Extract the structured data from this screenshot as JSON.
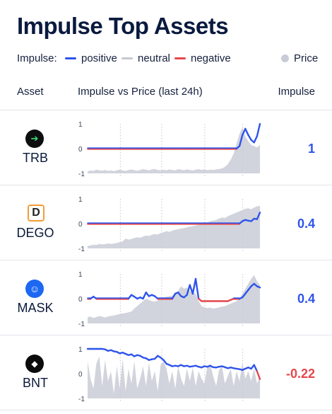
{
  "title": "Impulse Top Assets",
  "legend": {
    "prefix": "Impulse:",
    "positive": "positive",
    "neutral": "neutral",
    "negative": "negative",
    "price": "Price"
  },
  "colors": {
    "positive": "#2f54eb",
    "neutral": "#c5c8d0",
    "negative": "#e5484d",
    "price": "#c9ccd6"
  },
  "headers": {
    "asset": "Asset",
    "chart": "Impulse vs Price (last 24h)",
    "impulse": "Impulse"
  },
  "chart_data": [
    {
      "type": "line",
      "asset": "TRB",
      "icon": "trb-logo-icon",
      "impulse_label": "1",
      "impulse_color": "positive",
      "yticks": [
        "1",
        "0",
        "-1"
      ],
      "ylim": [
        -1,
        1
      ],
      "x_count": 60,
      "series": [
        {
          "kind": "impulse",
          "values": [
            0,
            0,
            0,
            0,
            0,
            0,
            0,
            0,
            0,
            0,
            0,
            0,
            0,
            0,
            0,
            0,
            0,
            0,
            0,
            0,
            0,
            0,
            0,
            0,
            0,
            0,
            0,
            0,
            0,
            0,
            0,
            0,
            0,
            0,
            0,
            0,
            0,
            0,
            0,
            0,
            0,
            0,
            0,
            0,
            0,
            0,
            0,
            0,
            0,
            0,
            0,
            0,
            0.1,
            0.55,
            0.8,
            0.55,
            0.35,
            0.25,
            0.5,
            1.0
          ]
        },
        {
          "kind": "price",
          "values": [
            -0.92,
            -0.88,
            -0.9,
            -0.85,
            -0.87,
            -0.89,
            -0.86,
            -0.9,
            -0.88,
            -0.91,
            -0.87,
            -0.85,
            -0.88,
            -0.9,
            -0.86,
            -0.84,
            -0.87,
            -0.89,
            -0.86,
            -0.83,
            -0.85,
            -0.88,
            -0.84,
            -0.82,
            -0.86,
            -0.88,
            -0.85,
            -0.87,
            -0.84,
            -0.86,
            -0.88,
            -0.83,
            -0.85,
            -0.87,
            -0.84,
            -0.86,
            -0.88,
            -0.85,
            -0.83,
            -0.86,
            -0.84,
            -0.87,
            -0.85,
            -0.86,
            -0.84,
            -0.82,
            -0.8,
            -0.74,
            -0.62,
            -0.45,
            -0.2,
            0.2,
            0.6,
            0.85,
            0.5,
            0.3,
            0.15,
            0.1,
            0.05,
            0.15
          ]
        }
      ]
    },
    {
      "type": "line",
      "asset": "DEGO",
      "icon": "dego-logo-icon",
      "impulse_label": "0.4",
      "impulse_color": "positive",
      "yticks": [
        "1",
        "0",
        "-1"
      ],
      "ylim": [
        -1,
        1
      ],
      "x_count": 60,
      "series": [
        {
          "kind": "impulse",
          "values": [
            0,
            0,
            0,
            0,
            0,
            0,
            0,
            0,
            0,
            0,
            0,
            0,
            0,
            0,
            0,
            0,
            0,
            0,
            0,
            0,
            0,
            0,
            0,
            0,
            0,
            0,
            0,
            0,
            0,
            0,
            0,
            0,
            0,
            0,
            0,
            0,
            0,
            0,
            0,
            0,
            0,
            0,
            0,
            0,
            0,
            0,
            0,
            0,
            0,
            0,
            0,
            0,
            0,
            0.1,
            0.15,
            0.12,
            0.1,
            0.2,
            0.18,
            0.45
          ]
        },
        {
          "kind": "price",
          "values": [
            -0.9,
            -0.88,
            -0.85,
            -0.86,
            -0.82,
            -0.84,
            -0.83,
            -0.8,
            -0.82,
            -0.8,
            -0.78,
            -0.75,
            -0.72,
            -0.6,
            -0.65,
            -0.62,
            -0.58,
            -0.55,
            -0.57,
            -0.52,
            -0.48,
            -0.5,
            -0.45,
            -0.42,
            -0.44,
            -0.38,
            -0.35,
            -0.3,
            -0.33,
            -0.28,
            -0.25,
            -0.22,
            -0.2,
            -0.18,
            -0.15,
            -0.12,
            -0.1,
            -0.08,
            -0.05,
            0.0,
            -0.02,
            0.05,
            0.1,
            0.12,
            0.15,
            0.2,
            0.25,
            0.22,
            0.3,
            0.35,
            0.4,
            0.45,
            0.5,
            0.55,
            0.6,
            0.62,
            0.58,
            0.65,
            0.7,
            0.72
          ]
        }
      ]
    },
    {
      "type": "line",
      "asset": "MASK",
      "icon": "mask-logo-icon",
      "impulse_label": "0.4",
      "impulse_color": "positive",
      "yticks": [
        "1",
        "0",
        "-1"
      ],
      "ylim": [
        -1,
        1
      ],
      "x_count": 60,
      "series": [
        {
          "kind": "impulse",
          "values": [
            0,
            0,
            0.08,
            0,
            0,
            0,
            0,
            0,
            0,
            0,
            0,
            0,
            0,
            0,
            0,
            0.15,
            0.08,
            0,
            0.05,
            0,
            0.25,
            0.1,
            0.15,
            0.1,
            0,
            0,
            0,
            0,
            0,
            0,
            0.2,
            0.25,
            0.1,
            0.05,
            0.15,
            0.55,
            0.2,
            0.8,
            0,
            -0.1,
            -0.1,
            -0.1,
            -0.1,
            -0.1,
            -0.1,
            -0.1,
            -0.1,
            -0.1,
            -0.1,
            -0.05,
            0,
            0,
            0,
            0.05,
            0.2,
            0.35,
            0.5,
            0.6,
            0.5,
            0.45
          ]
        },
        {
          "kind": "price",
          "values": [
            -0.75,
            -0.72,
            -0.78,
            -0.74,
            -0.7,
            -0.73,
            -0.76,
            -0.72,
            -0.7,
            -0.68,
            -0.65,
            -0.62,
            -0.6,
            -0.58,
            -0.55,
            -0.52,
            -0.4,
            -0.3,
            -0.2,
            -0.1,
            0.0,
            -0.05,
            -0.1,
            -0.12,
            -0.08,
            0.0,
            0.05,
            0.08,
            0.1,
            0.12,
            0.2,
            0.3,
            0.5,
            0.4,
            0.45,
            0.3,
            0.25,
            0.2,
            -0.1,
            -0.3,
            -0.35,
            -0.38,
            -0.36,
            -0.4,
            -0.38,
            -0.35,
            -0.32,
            -0.3,
            -0.25,
            -0.2,
            -0.15,
            -0.1,
            0.0,
            0.2,
            0.4,
            0.6,
            0.8,
            0.95,
            0.7,
            0.55
          ]
        }
      ]
    },
    {
      "type": "line",
      "asset": "BNT",
      "icon": "bnt-logo-icon",
      "impulse_label": "-0.22",
      "impulse_color": "negative",
      "yticks": [
        "1",
        "0",
        "-1"
      ],
      "ylim": [
        -1,
        1
      ],
      "x_count": 60,
      "series": [
        {
          "kind": "impulse",
          "values": [
            1,
            1,
            1,
            1,
            1,
            1,
            0.98,
            0.92,
            0.95,
            0.9,
            0.88,
            0.82,
            0.85,
            0.8,
            0.75,
            0.78,
            0.7,
            0.75,
            0.72,
            0.65,
            0.62,
            0.55,
            0.58,
            0.6,
            0.72,
            0.65,
            0.55,
            0.4,
            0.35,
            0.3,
            0.32,
            0.3,
            0.35,
            0.3,
            0.32,
            0.28,
            0.3,
            0.32,
            0.28,
            0.25,
            0.3,
            0.28,
            0.32,
            0.26,
            0.25,
            0.28,
            0.3,
            0.26,
            0.22,
            0.25,
            0.22,
            0.2,
            0.18,
            0.15,
            0.2,
            0.25,
            0.2,
            0.35,
            0.1,
            -0.22
          ]
        },
        {
          "kind": "price",
          "values": [
            0.5,
            -0.2,
            -0.6,
            0.4,
            0.7,
            -0.5,
            0.55,
            -0.3,
            0.1,
            -0.8,
            0.3,
            -0.6,
            0.6,
            -0.7,
            0.2,
            -0.4,
            0.5,
            -0.6,
            -0.2,
            0.3,
            -0.5,
            0.45,
            -0.3,
            0.1,
            -0.7,
            0.35,
            0.5,
            0.2,
            -0.4,
            0.1,
            -0.6,
            0.3,
            -0.2,
            -0.5,
            0.2,
            -0.3,
            0.25,
            -0.5,
            0.1,
            -0.2,
            -0.4,
            0.3,
            0.4,
            -0.1,
            -0.5,
            0.15,
            0.3,
            -0.4,
            -0.1,
            0.2,
            -0.5,
            0.1,
            -0.3,
            0.45,
            -0.2,
            0.1,
            -0.3,
            0.2,
            -0.4,
            -0.1
          ]
        }
      ]
    }
  ]
}
